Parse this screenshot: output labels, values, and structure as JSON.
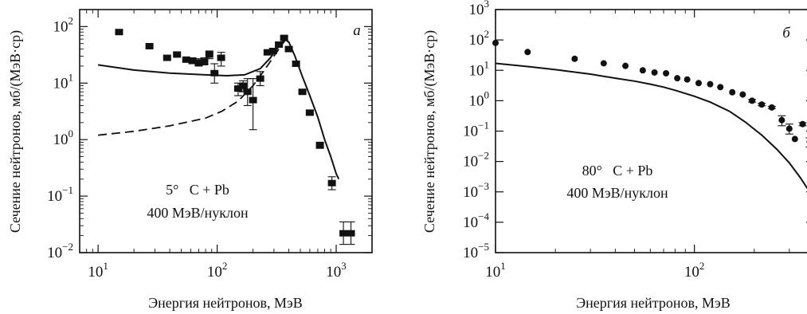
{
  "chart_data": [
    {
      "type": "scatter",
      "panel_letter": "а",
      "xlabel": "Энергия нейтронов, МэВ",
      "ylabel": "Сечение нейтронов, мб/(МэВ·ср)",
      "xscale": "log",
      "yscale": "log",
      "xlim": [
        7,
        2000
      ],
      "ylim": [
        0.01,
        200
      ],
      "x_ticks": [
        {
          "v": 10,
          "base": "10",
          "exp": "1"
        },
        {
          "v": 100,
          "base": "10",
          "exp": "2"
        },
        {
          "v": 1000,
          "base": "10",
          "exp": "3"
        }
      ],
      "y_ticks": [
        {
          "v": 0.01,
          "base": "10",
          "exp": "−2"
        },
        {
          "v": 0.1,
          "base": "10",
          "exp": "−1"
        },
        {
          "v": 1,
          "base": "10",
          "exp": "0"
        },
        {
          "v": 10,
          "base": "10",
          "exp": "1"
        },
        {
          "v": 100,
          "base": "10",
          "exp": "2"
        }
      ],
      "annotation": [
        "5°   C + Pb",
        "400 МэВ/нуклон"
      ],
      "series": [
        {
          "marker": "square",
          "points": [
            {
              "x": 15,
              "y": 80,
              "ylo": 80,
              "yhi": 80
            },
            {
              "x": 27,
              "y": 45,
              "ylo": 45,
              "yhi": 45
            },
            {
              "x": 38,
              "y": 28,
              "ylo": 28,
              "yhi": 28
            },
            {
              "x": 46,
              "y": 32,
              "ylo": 32,
              "yhi": 32
            },
            {
              "x": 55,
              "y": 26,
              "ylo": 26,
              "yhi": 26
            },
            {
              "x": 62,
              "y": 25,
              "ylo": 22,
              "yhi": 28
            },
            {
              "x": 70,
              "y": 23,
              "ylo": 20,
              "yhi": 27
            },
            {
              "x": 78,
              "y": 24,
              "ylo": 21,
              "yhi": 28
            },
            {
              "x": 86,
              "y": 32,
              "ylo": 27,
              "yhi": 37
            },
            {
              "x": 95,
              "y": 15,
              "ylo": 10,
              "yhi": 22
            },
            {
              "x": 108,
              "y": 28,
              "ylo": 20,
              "yhi": 35
            },
            {
              "x": 150,
              "y": 8,
              "ylo": 6,
              "yhi": 10
            },
            {
              "x": 165,
              "y": 9,
              "ylo": 7,
              "yhi": 11
            },
            {
              "x": 180,
              "y": 7,
              "ylo": 4,
              "yhi": 12
            },
            {
              "x": 200,
              "y": 5,
              "ylo": 1.5,
              "yhi": 12
            },
            {
              "x": 230,
              "y": 12,
              "ylo": 9,
              "yhi": 16
            },
            {
              "x": 265,
              "y": 35,
              "ylo": 32,
              "yhi": 38
            },
            {
              "x": 295,
              "y": 37,
              "ylo": 34,
              "yhi": 40
            },
            {
              "x": 330,
              "y": 48,
              "ylo": 44,
              "yhi": 52
            },
            {
              "x": 365,
              "y": 63,
              "ylo": 58,
              "yhi": 68
            },
            {
              "x": 400,
              "y": 40,
              "ylo": 37,
              "yhi": 43
            },
            {
              "x": 460,
              "y": 22,
              "ylo": 20,
              "yhi": 24
            },
            {
              "x": 520,
              "y": 7,
              "ylo": 6.5,
              "yhi": 7.5
            },
            {
              "x": 600,
              "y": 3,
              "ylo": 2.7,
              "yhi": 3.3
            },
            {
              "x": 730,
              "y": 0.8,
              "ylo": 0.7,
              "yhi": 0.9
            },
            {
              "x": 920,
              "y": 0.17,
              "ylo": 0.13,
              "yhi": 0.22
            },
            {
              "x": 1150,
              "y": 0.022,
              "ylo": 0.014,
              "yhi": 0.035
            },
            {
              "x": 1330,
              "y": 0.022,
              "ylo": 0.014,
              "yhi": 0.035
            }
          ]
        },
        {
          "style": "solid",
          "points": [
            [
              10,
              21
            ],
            [
              20,
              17
            ],
            [
              40,
              15
            ],
            [
              80,
              14
            ],
            [
              120,
              13.5
            ],
            [
              170,
              14
            ],
            [
              230,
              18
            ],
            [
              280,
              28
            ],
            [
              330,
              45
            ],
            [
              370,
              60
            ],
            [
              400,
              53
            ],
            [
              450,
              30
            ],
            [
              520,
              13
            ],
            [
              600,
              6
            ],
            [
              700,
              2.5
            ],
            [
              800,
              1
            ],
            [
              900,
              0.5
            ],
            [
              1000,
              0.25
            ],
            [
              1050,
              0.2
            ]
          ]
        },
        {
          "style": "dashed",
          "points": [
            [
              10,
              1.2
            ],
            [
              20,
              1.4
            ],
            [
              40,
              1.75
            ],
            [
              80,
              2.4
            ],
            [
              110,
              3.2
            ],
            [
              150,
              4.8
            ],
            [
              200,
              9
            ],
            [
              250,
              17
            ],
            [
              300,
              30
            ],
            [
              350,
              48
            ],
            [
              380,
              60
            ]
          ]
        }
      ]
    },
    {
      "type": "scatter",
      "panel_letter": "б",
      "xlabel": "Энергия нейтронов, МэВ",
      "ylabel": "Сечение нейтронов, мб/(МэВ·ср)",
      "xscale": "log",
      "yscale": "log",
      "xlim": [
        10,
        400
      ],
      "ylim": [
        1e-05,
        1000
      ],
      "x_ticks": [
        {
          "v": 10,
          "base": "10",
          "exp": "1"
        },
        {
          "v": 100,
          "base": "10",
          "exp": "2"
        }
      ],
      "y_ticks": [
        {
          "v": 1e-05,
          "base": "10",
          "exp": "−5"
        },
        {
          "v": 0.0001,
          "base": "10",
          "exp": "−4"
        },
        {
          "v": 0.001,
          "base": "10",
          "exp": "−3"
        },
        {
          "v": 0.01,
          "base": "10",
          "exp": "−2"
        },
        {
          "v": 0.1,
          "base": "10",
          "exp": "−1"
        },
        {
          "v": 1,
          "base": "10",
          "exp": "0"
        },
        {
          "v": 10,
          "base": "10",
          "exp": "1"
        },
        {
          "v": 100,
          "base": "10",
          "exp": "2"
        },
        {
          "v": 1000,
          "base": "10",
          "exp": "3"
        }
      ],
      "annotation": [
        "80°   C + Pb",
        "400 МэВ/нуклон"
      ],
      "series": [
        {
          "marker": "circle",
          "points": [
            {
              "x": 10,
              "y": 80,
              "ylo": 80,
              "yhi": 80
            },
            {
              "x": 14.5,
              "y": 40,
              "ylo": 40,
              "yhi": 40
            },
            {
              "x": 25,
              "y": 24,
              "ylo": 24,
              "yhi": 24
            },
            {
              "x": 35,
              "y": 17,
              "ylo": 17,
              "yhi": 17
            },
            {
              "x": 45,
              "y": 14,
              "ylo": 14,
              "yhi": 14
            },
            {
              "x": 55,
              "y": 10,
              "ylo": 10,
              "yhi": 10
            },
            {
              "x": 63,
              "y": 8.5,
              "ylo": 8.5,
              "yhi": 8.5
            },
            {
              "x": 72,
              "y": 8,
              "ylo": 8,
              "yhi": 8
            },
            {
              "x": 82,
              "y": 5.5,
              "ylo": 5.5,
              "yhi": 5.5
            },
            {
              "x": 92,
              "y": 5,
              "ylo": 5,
              "yhi": 5
            },
            {
              "x": 105,
              "y": 3.8,
              "ylo": 3.8,
              "yhi": 3.8
            },
            {
              "x": 120,
              "y": 3.5,
              "ylo": 3.5,
              "yhi": 3.5
            },
            {
              "x": 135,
              "y": 2.8,
              "ylo": 2.8,
              "yhi": 2.8
            },
            {
              "x": 155,
              "y": 1.9,
              "ylo": 1.9,
              "yhi": 1.9
            },
            {
              "x": 175,
              "y": 1.6,
              "ylo": 1.6,
              "yhi": 1.6
            },
            {
              "x": 195,
              "y": 1.0,
              "ylo": 0.9,
              "yhi": 1.1
            },
            {
              "x": 218,
              "y": 0.75,
              "ylo": 0.68,
              "yhi": 0.82
            },
            {
              "x": 245,
              "y": 0.6,
              "ylo": 0.55,
              "yhi": 0.65
            },
            {
              "x": 275,
              "y": 0.23,
              "ylo": 0.15,
              "yhi": 0.32
            },
            {
              "x": 300,
              "y": 0.12,
              "ylo": 0.08,
              "yhi": 0.17
            },
            {
              "x": 320,
              "y": 0.055,
              "ylo": 0.055,
              "yhi": 0.055
            },
            {
              "x": 350,
              "y": 0.17,
              "ylo": 0.15,
              "yhi": 0.19
            },
            {
              "x": 380,
              "y": 0.045,
              "ylo": 0.03,
              "yhi": 0.06
            },
            {
              "x": 398,
              "y": 0.055,
              "ylo": 0.055,
              "yhi": 0.055
            }
          ]
        },
        {
          "style": "solid",
          "points": [
            [
              10,
              17
            ],
            [
              15,
              13
            ],
            [
              20,
              10.5
            ],
            [
              30,
              7.5
            ],
            [
              40,
              5.5
            ],
            [
              50,
              4.4
            ],
            [
              60,
              3.5
            ],
            [
              70,
              2.8
            ],
            [
              80,
              2.2
            ],
            [
              100,
              1.4
            ],
            [
              120,
              0.9
            ],
            [
              150,
              0.45
            ],
            [
              180,
              0.2
            ],
            [
              220,
              0.07
            ],
            [
              260,
              0.025
            ],
            [
              300,
              0.009
            ],
            [
              340,
              0.003
            ],
            [
              370,
              0.0013
            ],
            [
              400,
              0.0007
            ]
          ]
        }
      ]
    }
  ]
}
